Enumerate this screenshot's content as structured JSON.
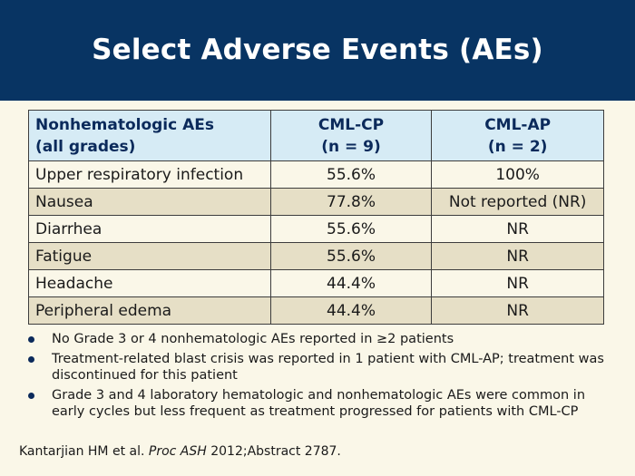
{
  "slide": {
    "title": "Select Adverse Events (AEs)"
  },
  "table": {
    "headers": {
      "col0_line1": "Nonhematologic AEs",
      "col0_line2": "(all grades)",
      "col1_line1": "CML-CP",
      "col1_line2": "(n = 9)",
      "col2_line1": "CML-AP",
      "col2_line2": "(n = 2)"
    },
    "rows": [
      {
        "event": "Upper respiratory infection",
        "cml_cp": "55.6%",
        "cml_ap": "100%"
      },
      {
        "event": "Nausea",
        "cml_cp": "77.8%",
        "cml_ap": "Not reported (NR)"
      },
      {
        "event": "Diarrhea",
        "cml_cp": "55.6%",
        "cml_ap": "NR"
      },
      {
        "event": "Fatigue",
        "cml_cp": "55.6%",
        "cml_ap": "NR"
      },
      {
        "event": "Headache",
        "cml_cp": "44.4%",
        "cml_ap": "NR"
      },
      {
        "event": "Peripheral edema",
        "cml_cp": "44.4%",
        "cml_ap": "NR"
      }
    ]
  },
  "bullets": [
    "No Grade 3 or 4 nonhematologic AEs reported in ≥2 patients",
    "Treatment-related blast crisis was reported in 1 patient with CML-AP; treatment was discontinued for this patient",
    "Grade 3 and 4 laboratory hematologic and nonhematologic AEs were common in early cycles but less frequent as treatment progressed for patients with CML-CP"
  ],
  "citation": {
    "authors": "Kantarjian HM et al.",
    "journal": "Proc ASH",
    "details": "2012;Abstract 2787."
  },
  "colors": {
    "header_bg": "#083463",
    "table_header_bg": "#d6ebf5",
    "row_even_bg": "#e6dfc6",
    "page_bg": "#faf7e8"
  }
}
